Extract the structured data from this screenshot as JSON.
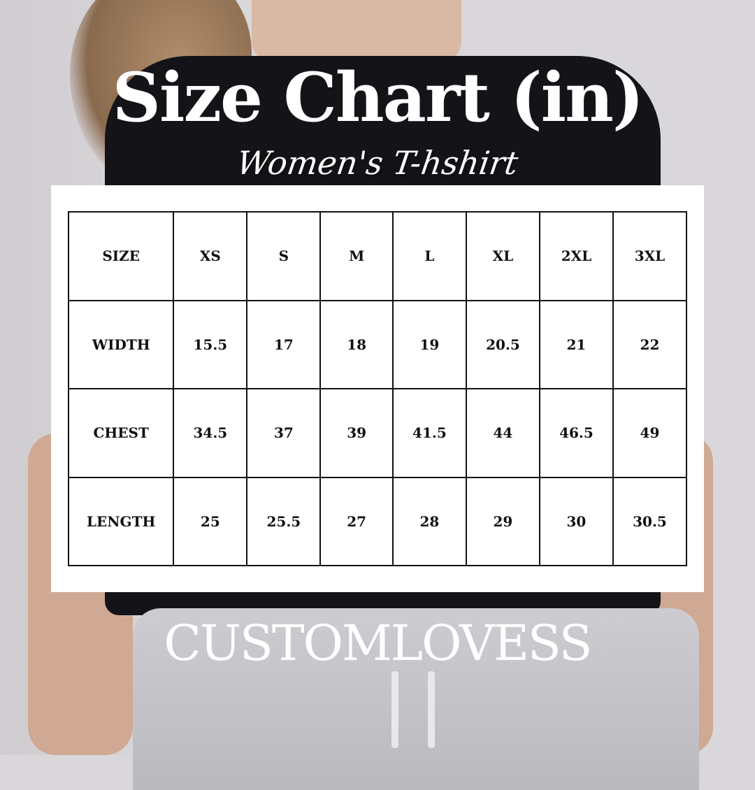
{
  "title": "Size Chart (in)",
  "subtitle": "Women's T-hshirt",
  "brand": "CUSTOMLOVESS",
  "chart_data": {
    "type": "table",
    "columns": [
      "SIZE",
      "XS",
      "S",
      "M",
      "L",
      "XL",
      "2XL",
      "3XL"
    ],
    "rows": [
      {
        "label": "WIDTH",
        "values": [
          "15.5",
          "17",
          "18",
          "19",
          "20.5",
          "21",
          "22"
        ]
      },
      {
        "label": "CHEST",
        "values": [
          "34.5",
          "37",
          "39",
          "41.5",
          "44",
          "46.5",
          "49"
        ]
      },
      {
        "label": "LENGTH",
        "values": [
          "25",
          "25.5",
          "27",
          "28",
          "29",
          "30",
          "30.5"
        ]
      }
    ]
  }
}
